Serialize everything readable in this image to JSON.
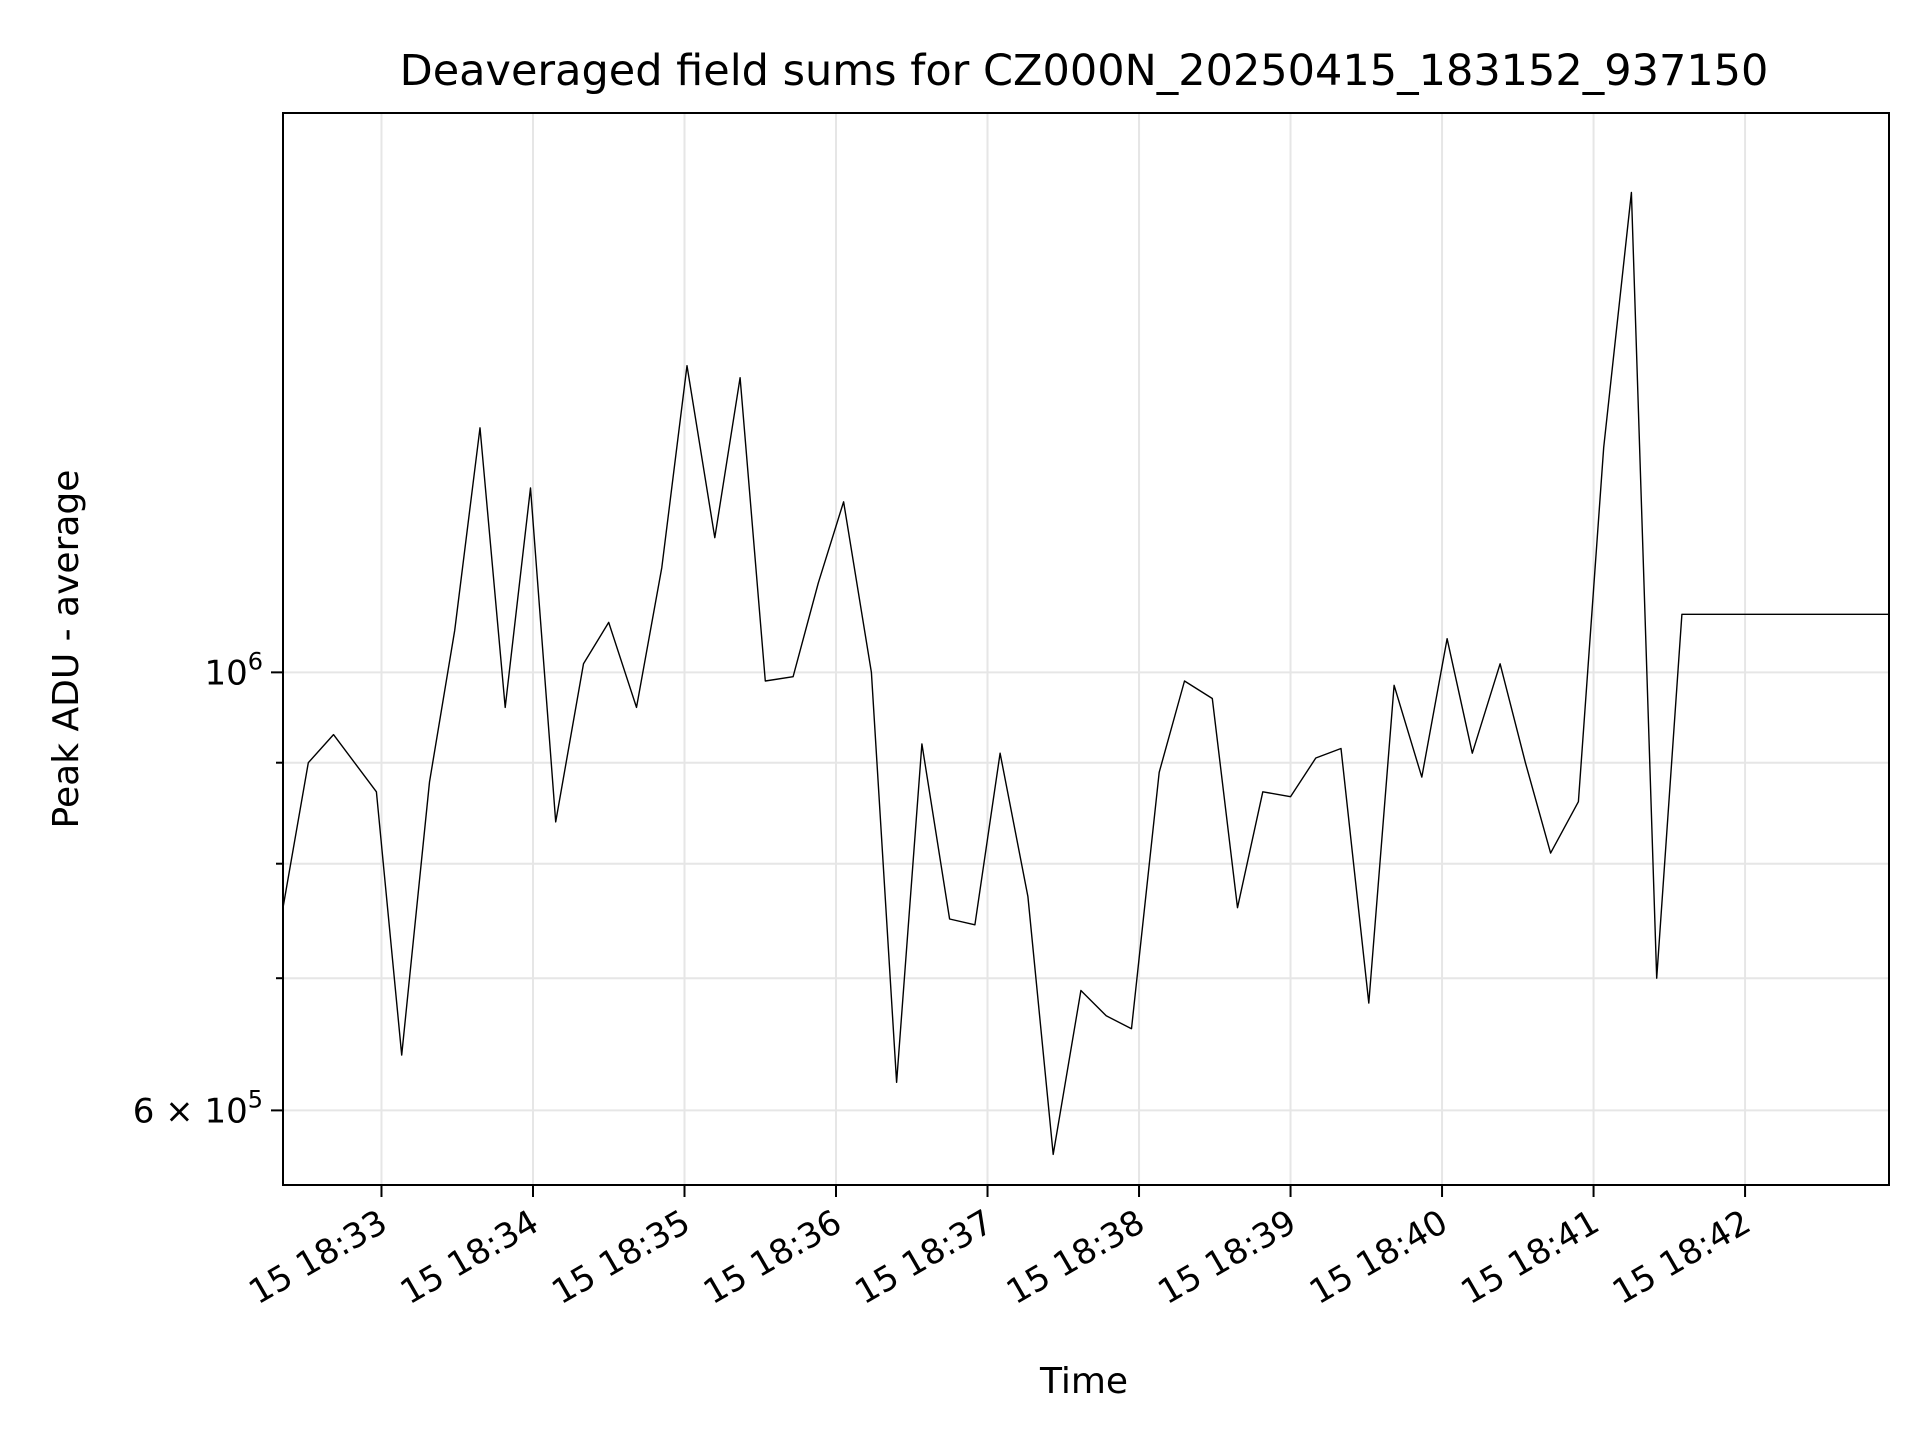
{
  "chart_data": {
    "type": "line",
    "title": "Deaveraged field sums for CZ000N_20250415_183152_937150",
    "xlabel": "Time",
    "ylabel": "Peak ADU - average",
    "y_scale": "log",
    "grid": true,
    "line_color": "#000000",
    "grid_color": "#e6e6e6",
    "x_tick_labels": [
      "15 18:33",
      "15 18:34",
      "15 18:35",
      "15 18:36",
      "15 18:37",
      "15 18:38",
      "15 18:39",
      "15 18:40",
      "15 18:41",
      "15 18:42"
    ],
    "x_tick_times": [
      "18:33:00",
      "18:34:00",
      "18:35:00",
      "18:36:00",
      "18:37:00",
      "18:38:00",
      "18:39:00",
      "18:40:00",
      "18:41:00",
      "18:42:00"
    ],
    "y_major_ticks": [
      {
        "value": 1000000,
        "base": "10",
        "exp": "6"
      },
      {
        "value": 600000,
        "base": "6 × 10",
        "exp": "5"
      }
    ],
    "y_minor_grid_values": [
      700000,
      800000,
      900000
    ],
    "xlim": [
      "18:32:21",
      "18:42:57"
    ],
    "ylim": [
      550000,
      1920000
    ],
    "series": [
      {
        "x": [
          "18:32:21",
          "18:32:31",
          "18:32:41",
          "18:32:58",
          "18:33:08",
          "18:33:19",
          "18:33:29",
          "18:33:39",
          "18:33:49",
          "18:33:59",
          "18:34:09",
          "18:34:20",
          "18:34:30",
          "18:34:41",
          "18:34:51",
          "18:35:01",
          "18:35:12",
          "18:35:22",
          "18:35:32",
          "18:35:43",
          "18:35:53",
          "18:36:03",
          "18:36:14",
          "18:36:24",
          "18:36:34",
          "18:36:45",
          "18:36:55",
          "18:37:05",
          "18:37:16",
          "18:37:26",
          "18:37:37",
          "18:37:47",
          "18:37:57",
          "18:38:08",
          "18:38:18",
          "18:38:29",
          "18:38:39",
          "18:38:49",
          "18:39:00",
          "18:39:10",
          "18:39:20",
          "18:39:31",
          "18:39:41",
          "18:39:52",
          "18:40:02",
          "18:40:12",
          "18:40:23",
          "18:40:33",
          "18:40:43",
          "18:40:54",
          "18:41:04",
          "18:41:15",
          "18:41:25",
          "18:41:35",
          "18:41:46",
          "18:41:56",
          "18:42:06",
          "18:42:17",
          "18:42:27",
          "18:42:37",
          "18:42:47",
          "18:42:57"
        ],
        "y": [
          760000,
          900000,
          930000,
          870000,
          640000,
          880000,
          1050000,
          1330000,
          960000,
          1240000,
          840000,
          1010000,
          1060000,
          960000,
          1130000,
          1430000,
          1170000,
          1410000,
          990000,
          995000,
          1110000,
          1220000,
          1000000,
          620000,
          920000,
          750000,
          745000,
          910000,
          770000,
          570000,
          690000,
          670000,
          660000,
          890000,
          990000,
          970000,
          760000,
          870000,
          865000,
          905000,
          915000,
          680000,
          985000,
          885000,
          1040000,
          910000,
          1010000,
          900000,
          810000,
          860000,
          1300000,
          1750000,
          700000,
          1070000,
          1070000,
          1070000,
          1070000,
          1070000,
          1070000,
          1070000,
          1070000,
          1070000
        ]
      }
    ]
  }
}
